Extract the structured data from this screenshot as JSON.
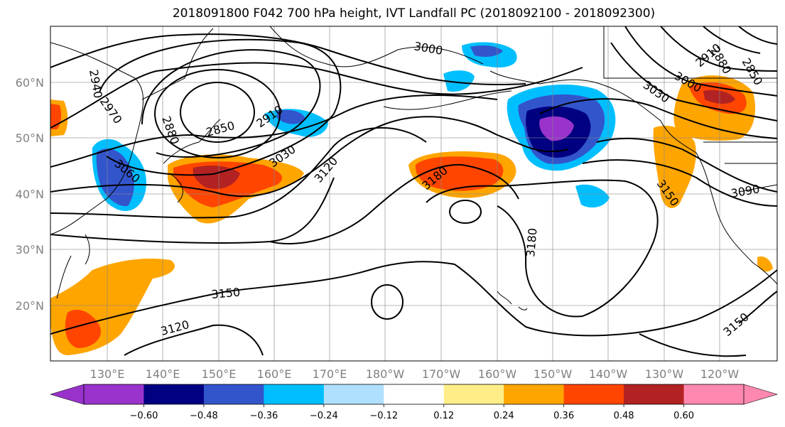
{
  "title": "2018091800 F042 700 hPa height, IVT Landfall PC (2018092100 - 2018092300)",
  "latitude_labels": [
    "60°N",
    "50°N",
    "40°N",
    "30°N",
    "20°N"
  ],
  "longitude_labels": [
    "130°E",
    "140°E",
    "150°E",
    "160°E",
    "170°E",
    "180°W",
    "170°W",
    "160°W",
    "150°W",
    "140°W",
    "130°W",
    "120°W"
  ],
  "contour_labels": [
    "2940",
    "2970",
    "2850",
    "2880",
    "2910",
    "3000",
    "3030",
    "3060",
    "3120",
    "3180",
    "3090",
    "3150",
    "2850",
    "2880",
    "2910",
    "3000",
    "3030",
    "3150",
    "3120",
    "3180",
    "3150"
  ],
  "colorbar": {
    "tick_labels": [
      "−0.60",
      "−0.48",
      "−0.36",
      "−0.24",
      "−0.12",
      "0.12",
      "0.24",
      "0.36",
      "0.48",
      "0.60"
    ],
    "colors": [
      "#9933cc",
      "#000080",
      "#3355cc",
      "#00bfff",
      "#b0e0ff",
      "#ffffff",
      "#ffee88",
      "#ffa500",
      "#ff4500",
      "#b22222",
      "#ff88b0"
    ]
  }
}
